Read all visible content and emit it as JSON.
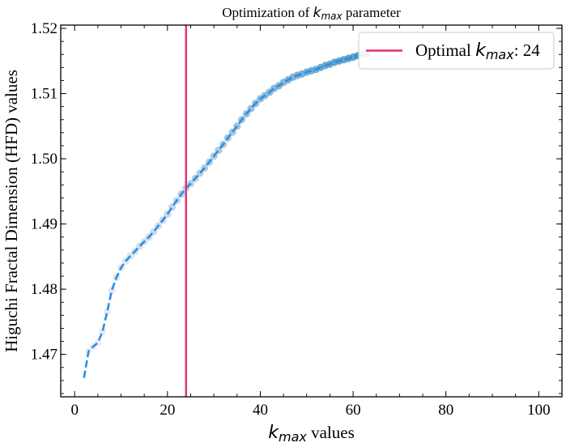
{
  "chart_data": {
    "type": "scatter",
    "title": {
      "prefix": "Optimization of ",
      "var": "k",
      "sub": "max",
      "suffix": " parameter"
    },
    "xlabel": {
      "var": "k",
      "sub": "max",
      "suffix": " values"
    },
    "ylabel": "Higuchi Fractal Dimension (HFD) values",
    "xlim": [
      -3,
      105
    ],
    "ylim": [
      1.4635,
      1.5205
    ],
    "x_ticks": [
      {
        "v": 0,
        "label": "0"
      },
      {
        "v": 20,
        "label": "20"
      },
      {
        "v": 40,
        "label": "40"
      },
      {
        "v": 60,
        "label": "60"
      },
      {
        "v": 80,
        "label": "80"
      },
      {
        "v": 100,
        "label": "100"
      }
    ],
    "y_ticks": [
      {
        "v": 1.47,
        "label": "1.47"
      },
      {
        "v": 1.48,
        "label": "1.48"
      },
      {
        "v": 1.49,
        "label": "1.49"
      },
      {
        "v": 1.5,
        "label": "1.50"
      },
      {
        "v": 1.51,
        "label": "1.51"
      },
      {
        "v": 1.52,
        "label": "1.52"
      }
    ],
    "x_minor_step": 5,
    "y_minor_step": 0.002,
    "grid": false,
    "legend": {
      "placement": "top-right",
      "text_prefix": "Optimal ",
      "var": "k",
      "sub": "max",
      "text_suffix": ": 24"
    },
    "optimal_k": 24,
    "colors": {
      "optimal_line": "#e0306a",
      "fit_line": "#2b8fe0",
      "point_low": "#f3eef7",
      "point_high": "#3d8fc4"
    },
    "series": [
      {
        "x": [
          2,
          3,
          4,
          5,
          6,
          7,
          8,
          9,
          10,
          11,
          12,
          13,
          14,
          15,
          16,
          17,
          18,
          19,
          20,
          21,
          22,
          23,
          24,
          25,
          26,
          27,
          28,
          29,
          30,
          31,
          32,
          33,
          34,
          35,
          36,
          37,
          38,
          39,
          40,
          41,
          42,
          43,
          44,
          45,
          46,
          47,
          48,
          49,
          50,
          51,
          52,
          53,
          54,
          55,
          56,
          57,
          58,
          59,
          60,
          61,
          62,
          63
        ],
        "y": [
          1.4664,
          1.4705,
          1.4712,
          1.4718,
          1.4735,
          1.4765,
          1.4798,
          1.4818,
          1.4833,
          1.4843,
          1.4851,
          1.4858,
          1.4866,
          1.4873,
          1.488,
          1.4888,
          1.4897,
          1.4906,
          1.4915,
          1.4926,
          1.4936,
          1.4946,
          1.4955,
          1.4962,
          1.497,
          1.4978,
          1.4986,
          1.4995,
          1.5004,
          1.5013,
          1.5022,
          1.5032,
          1.5041,
          1.505,
          1.506,
          1.5069,
          1.5077,
          1.5085,
          1.5092,
          1.5097,
          1.5102,
          1.5108,
          1.5112,
          1.5117,
          1.5121,
          1.5125,
          1.5128,
          1.513,
          1.5133,
          1.5135,
          1.5137,
          1.514,
          1.5143,
          1.5145,
          1.5148,
          1.515,
          1.5152,
          1.5154,
          1.5156,
          1.5158,
          1.516,
          1.5161
        ]
      }
    ]
  }
}
